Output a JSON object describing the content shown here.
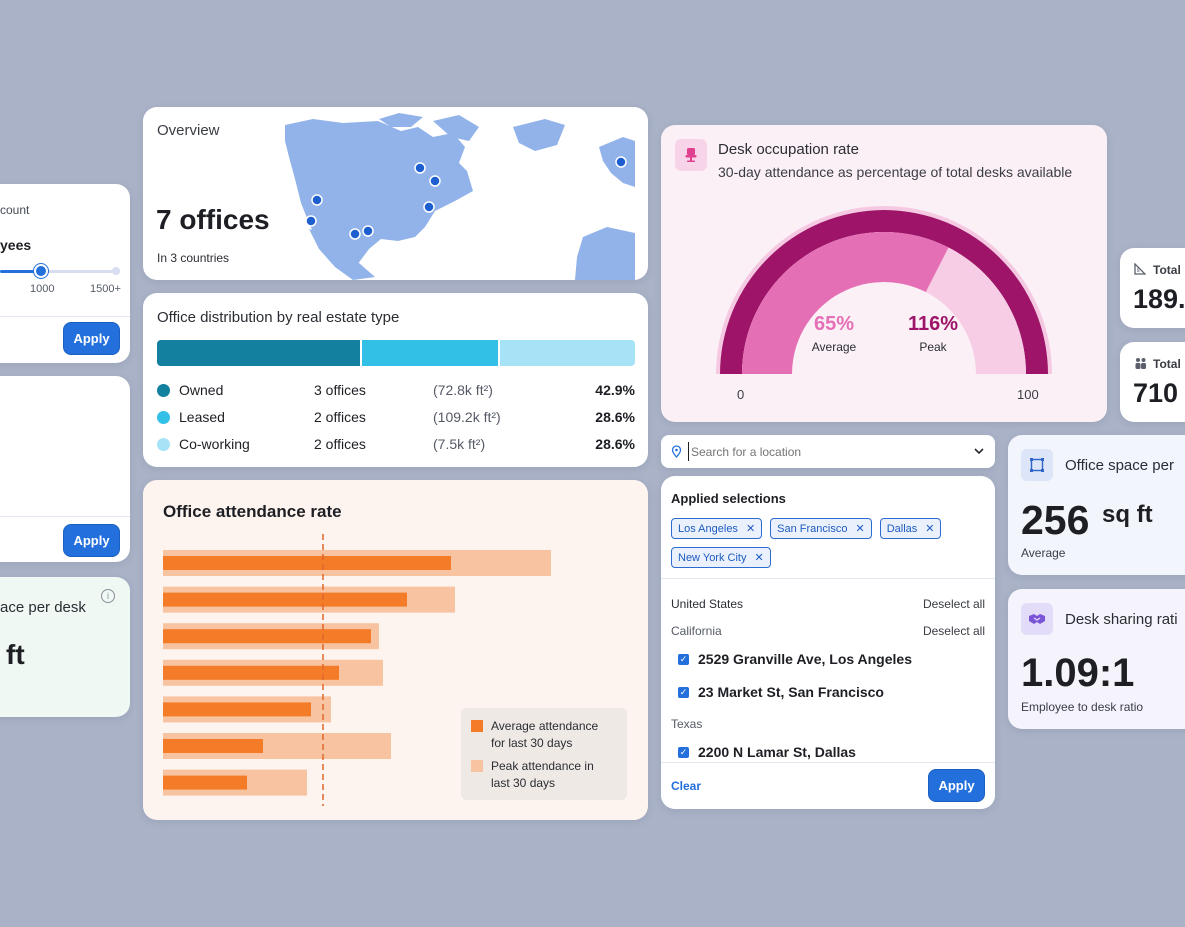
{
  "slider_card": {
    "label": "count",
    "title": "yees",
    "tick_1000": "1000",
    "tick_max": "1500+",
    "apply_label": "Apply"
  },
  "blank_card": {
    "apply_label": "Apply"
  },
  "space_partial": {
    "title": "ace per desk",
    "value": "ft"
  },
  "overview": {
    "title": "Overview",
    "offices": "7 offices",
    "countries": "In 3 countries"
  },
  "distribution": {
    "title": "Office distribution by real estate type",
    "rows": [
      {
        "type": "Owned",
        "count": "3 offices",
        "area": "(72.8k ft²)",
        "pct": "42.9%",
        "color": "#13809f",
        "share": 42.9
      },
      {
        "type": "Leased",
        "count": "2 offices",
        "area": "(109.2k ft²)",
        "pct": "28.6%",
        "color": "#33c0e6",
        "share": 28.6
      },
      {
        "type": "Co-working",
        "count": "2 offices",
        "area": "(7.5k ft²)",
        "pct": "28.6%",
        "color": "#a7e3f6",
        "share": 28.6
      }
    ]
  },
  "attendance": {
    "title": "Office attendance rate",
    "legend_avg": [
      "Average attendance",
      "for last 30 days"
    ],
    "legend_peak": [
      "Peak attendance in",
      "last 30 days"
    ],
    "colors": {
      "avg": "#f47b27",
      "peak": "#f8c3a0"
    }
  },
  "chart_data": {
    "type": "bar",
    "title": "Office attendance rate",
    "categories": [
      "",
      "",
      "",
      "",
      "",
      "",
      ""
    ],
    "series": [
      {
        "name": "Average attendance for last 30 days",
        "values": [
          72,
          61,
          52,
          44,
          37,
          25,
          21
        ]
      },
      {
        "name": "Peak attendance in last 30 days",
        "values": [
          97,
          73,
          54,
          55,
          42,
          57,
          36
        ]
      }
    ],
    "reference_line": 40,
    "xlim": [
      0,
      110
    ],
    "grid": false,
    "legend": "bottom-right"
  },
  "occupation": {
    "title": "Desk occupation rate",
    "subtitle": "30-day attendance as percentage of total desks available",
    "average_pct": "65%",
    "average_label": "Average",
    "peak_pct": "116%",
    "peak_label": "Peak",
    "min": "0",
    "max": "100",
    "average_value": 65,
    "peak_value": 116
  },
  "search": {
    "placeholder": "Search for a location"
  },
  "selections": {
    "title": "Applied selections",
    "chips": [
      "Los Angeles",
      "San Francisco",
      "Dallas",
      "New York City"
    ],
    "country": "United States",
    "deselect": "Deselect all",
    "state1": "California",
    "addr1": "2529 Granville Ave, Los Angeles",
    "addr2": "23 Market St, San Francisco",
    "state2": "Texas",
    "addr3": "2200 N Lamar St, Dallas",
    "clear_label": "Clear",
    "apply_label": "Apply"
  },
  "total1": {
    "label": "Total",
    "value": "189."
  },
  "total2": {
    "label": "Total",
    "value": "710"
  },
  "office_space": {
    "title": "Office space per",
    "value": "256",
    "unit": "sq ft",
    "caption": "Average"
  },
  "desk_sharing": {
    "title": "Desk sharing rati",
    "value": "1.09:1",
    "caption": "Employee to desk ratio"
  }
}
